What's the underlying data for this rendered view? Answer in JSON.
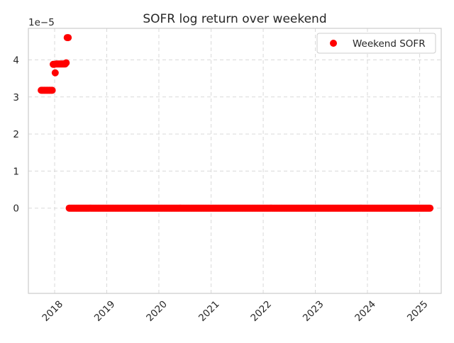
{
  "chart_data": {
    "type": "scatter",
    "title": "SOFR log return over weekend",
    "xlabel": "",
    "ylabel": "",
    "y_offset_label": "1e−5",
    "y_multiplier": 1e-05,
    "xlim": [
      "2017-07-01",
      "2025-06-01"
    ],
    "ylim": [
      -2.3,
      4.85
    ],
    "x_ticks": [
      "2018",
      "2019",
      "2020",
      "2021",
      "2022",
      "2023",
      "2024",
      "2025"
    ],
    "y_ticks": [
      "0",
      "1",
      "2",
      "3",
      "4"
    ],
    "grid": true,
    "legend_position": "top-right",
    "series": [
      {
        "name": "Weekend SOFR",
        "color": "#ff0000",
        "segments": [
          {
            "start": "2017-09-29",
            "end": "2017-12-15",
            "value": 3.18
          },
          {
            "start": "2017-12-22",
            "end": "2017-12-29",
            "value": 3.88
          },
          {
            "start": "2018-01-05",
            "end": "2018-01-05",
            "value": 3.65
          },
          {
            "start": "2018-01-12",
            "end": "2018-03-16",
            "value": 3.89
          },
          {
            "start": "2018-03-23",
            "end": "2018-03-23",
            "value": 3.92
          },
          {
            "start": "2018-03-30",
            "end": "2018-04-06",
            "value": 4.6
          },
          {
            "start": "2018-04-13",
            "end": "2025-03-14",
            "value": 0.0
          }
        ]
      }
    ]
  }
}
